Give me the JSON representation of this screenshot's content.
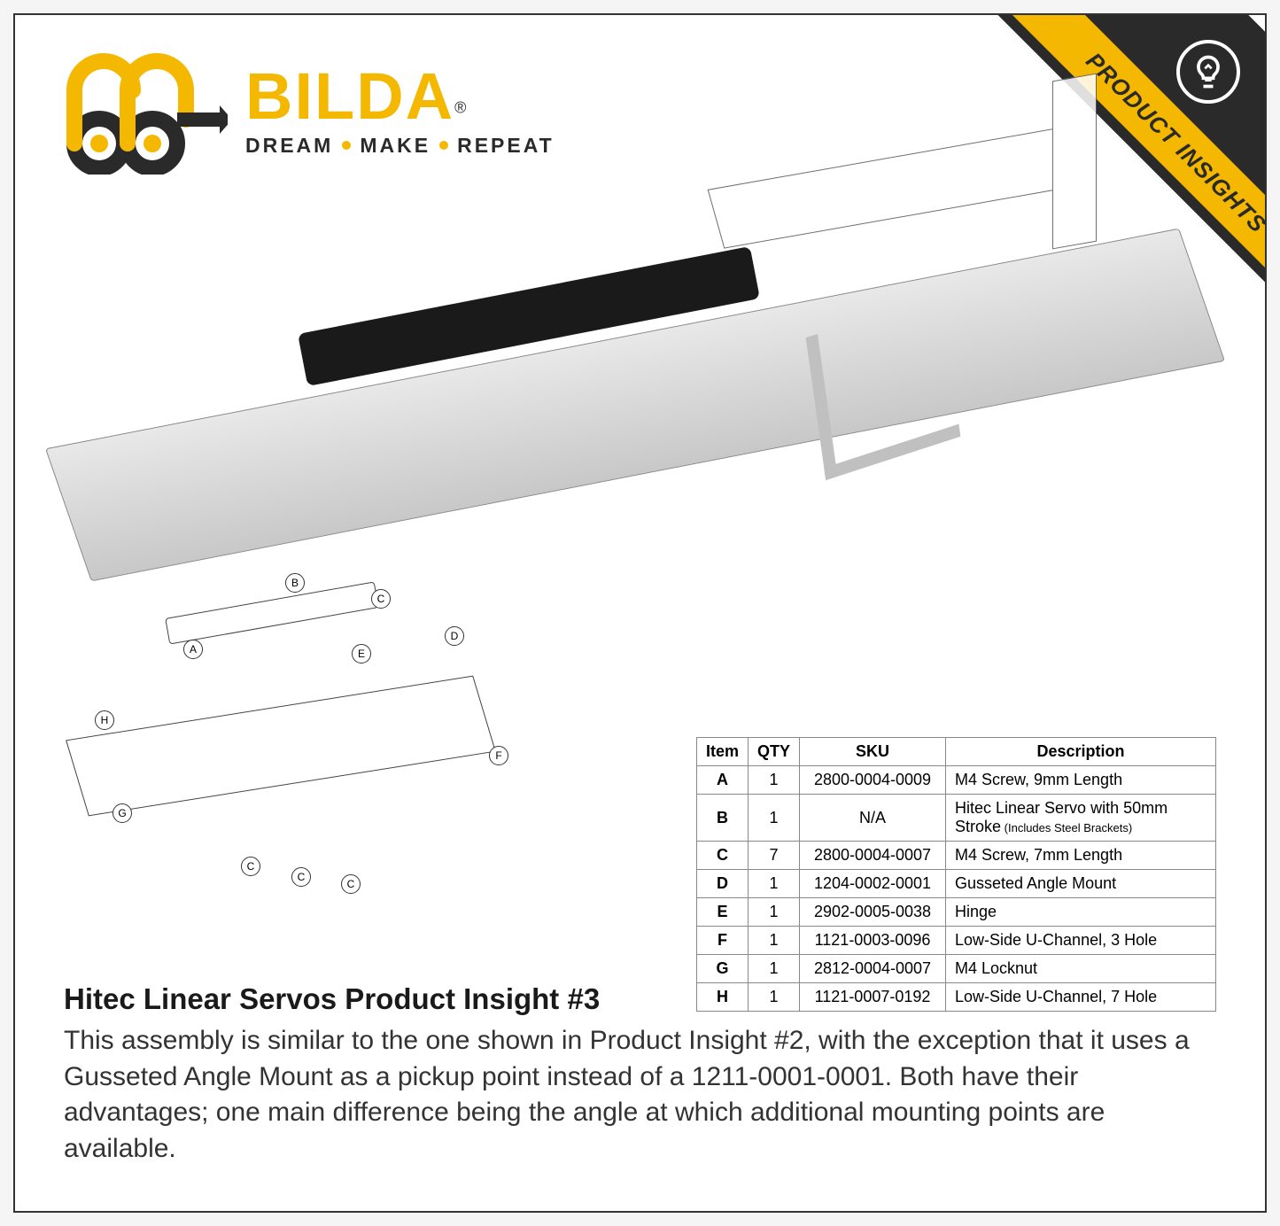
{
  "ribbon": {
    "label": "PRODUCT INSIGHTS",
    "bg_dark": "#2a2a2a",
    "bg_yellow": "#f5b800"
  },
  "logo": {
    "brand_prefix": "go",
    "brand": "BILDA",
    "registered": "®",
    "tagline_words": [
      "DREAM",
      "MAKE",
      "REPEAT"
    ],
    "brand_color": "#f5b800",
    "mark_dark": "#2a2a2a"
  },
  "callouts": {
    "A": "A",
    "B": "B",
    "C": "C",
    "D": "D",
    "E": "E",
    "F": "F",
    "G": "G",
    "H": "H"
  },
  "parts_table": {
    "headers": [
      "Item",
      "QTY",
      "SKU",
      "Description"
    ],
    "rows": [
      {
        "item": "A",
        "qty": "1",
        "sku": "2800-0004-0009",
        "desc": "M4 Screw, 9mm Length"
      },
      {
        "item": "B",
        "qty": "1",
        "sku": "N/A",
        "desc": "Hitec Linear Servo with 50mm Stroke",
        "desc_sub": "(Includes Steel Brackets)"
      },
      {
        "item": "C",
        "qty": "7",
        "sku": "2800-0004-0007",
        "desc": "M4 Screw, 7mm Length"
      },
      {
        "item": "D",
        "qty": "1",
        "sku": "1204-0002-0001",
        "desc": "Gusseted Angle Mount"
      },
      {
        "item": "E",
        "qty": "1",
        "sku": "2902-0005-0038",
        "desc": "Hinge"
      },
      {
        "item": "F",
        "qty": "1",
        "sku": "1121-0003-0096",
        "desc": "Low-Side U-Channel, 3 Hole"
      },
      {
        "item": "G",
        "qty": "1",
        "sku": "2812-0004-0007",
        "desc": "M4 Locknut"
      },
      {
        "item": "H",
        "qty": "1",
        "sku": "1121-0007-0192",
        "desc": "Low-Side U-Channel, 7 Hole"
      }
    ],
    "col_widths": {
      "item": 55,
      "qty": 50,
      "sku": 165,
      "desc": 305
    }
  },
  "bottom": {
    "title": "Hitec Linear Servos Product Insight #3",
    "body": "This assembly is similar to the one shown in Product Insight #2, with the exception that it uses a Gusseted Angle Mount as a pickup point instead of a 1211-0001-0001. Both have their advantages; one main difference being the angle at which additional mounting points are available."
  },
  "colors": {
    "page_bg": "#ffffff",
    "border": "#333333",
    "text": "#1a1a1a",
    "accent": "#f5b800"
  }
}
